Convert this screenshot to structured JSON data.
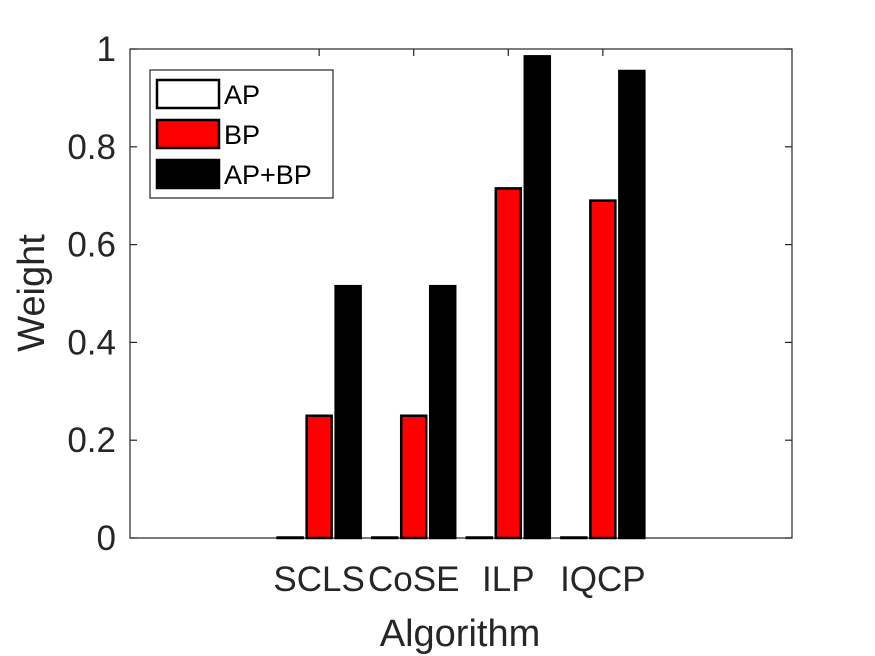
{
  "chart_data": {
    "type": "bar",
    "categories": [
      "SCLS",
      "CoSE",
      "ILP",
      "IQCP"
    ],
    "series": [
      {
        "name": "AP",
        "values": [
          0,
          0,
          0,
          0
        ],
        "color": "#ffffff"
      },
      {
        "name": "BP",
        "values": [
          0.25,
          0.25,
          0.715,
          0.69
        ],
        "color": "#ff0000"
      },
      {
        "name": "AP+BP",
        "values": [
          0.515,
          0.515,
          0.985,
          0.955
        ],
        "color": "#000000"
      }
    ],
    "title": "",
    "xlabel": "Algorithm",
    "ylabel": "Weight",
    "ylim": [
      0,
      1
    ],
    "yticks": [
      0,
      0.2,
      0.4,
      0.6,
      0.8,
      1
    ],
    "ytick_labels": [
      "0",
      "0.2",
      "0.4",
      "0.6",
      "0.8",
      "1"
    ],
    "legend_position": "top-left",
    "grid": false
  }
}
